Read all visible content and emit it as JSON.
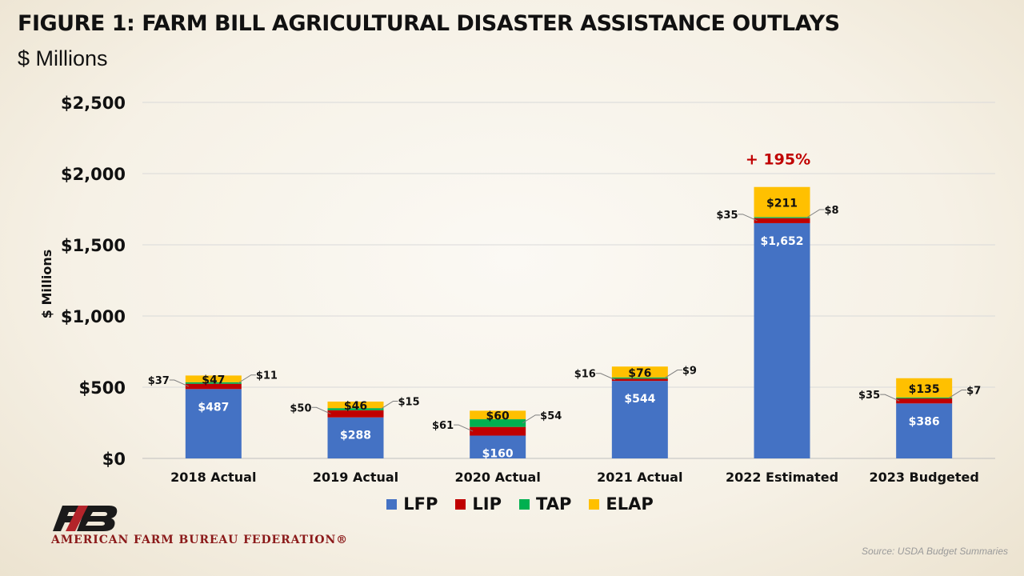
{
  "header": {
    "title": "FIGURE 1: FARM BILL AGRICULTURAL DISASTER ASSISTANCE OUTLAYS",
    "subtitle": "$ Millions"
  },
  "chart_data": {
    "type": "bar",
    "stacked": true,
    "ylabel": "$ Millions",
    "xlabel": "",
    "ylim": [
      0,
      2500
    ],
    "yticks": [
      0,
      500,
      1000,
      1500,
      2000,
      2500
    ],
    "ytick_labels": [
      "$0",
      "$500",
      "$1,000",
      "$1,500",
      "$2,000",
      "$2,500"
    ],
    "grid": true,
    "legend_position": "bottom",
    "categories": [
      "2018 Actual",
      "2019 Actual",
      "2020 Actual",
      "2021 Actual",
      "2022 Estimated",
      "2023 Budgeted"
    ],
    "series": [
      {
        "name": "LFP",
        "color": "#4472c4",
        "values": [
          487,
          288,
          160,
          544,
          1652,
          386
        ],
        "labels": [
          "$487",
          "$288",
          "$160",
          "$544",
          "$1,652",
          "$386"
        ]
      },
      {
        "name": "LIP",
        "color": "#c00000",
        "values": [
          37,
          50,
          61,
          16,
          35,
          35
        ],
        "labels": [
          "$37",
          "$50",
          "$61",
          "$16",
          "$35",
          "$35"
        ]
      },
      {
        "name": "TAP",
        "color": "#00b050",
        "values": [
          11,
          15,
          54,
          9,
          8,
          7
        ],
        "labels": [
          "$11",
          "$15",
          "$54",
          "$9",
          "$8",
          "$7"
        ]
      },
      {
        "name": "ELAP",
        "color": "#ffc000",
        "values": [
          47,
          46,
          60,
          76,
          211,
          135
        ],
        "labels": [
          "$47",
          "$46",
          "$60",
          "$76",
          "$211",
          "$135"
        ]
      }
    ],
    "annotations": [
      {
        "text": "+ 195%",
        "category": "2022 Estimated",
        "color": "#c00000"
      }
    ]
  },
  "footer": {
    "organization": "AMERICAN FARM BUREAU FEDERATION®",
    "source": "Source: USDA Budget Summaries"
  }
}
